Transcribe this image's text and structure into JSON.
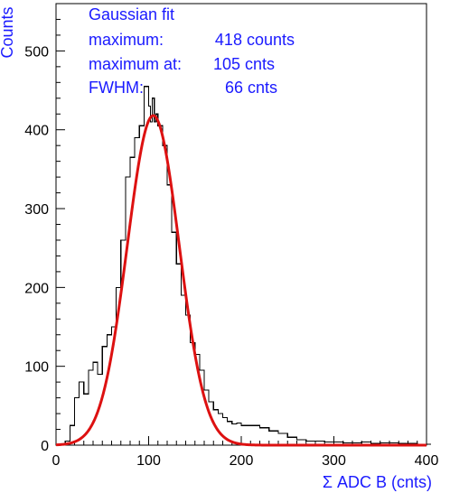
{
  "chart_data": {
    "type": "line",
    "title": "",
    "xlabel": "Σ ADC B  (cnts)",
    "ylabel": "Counts",
    "xlim": [
      0,
      400
    ],
    "ylim": [
      0,
      560
    ],
    "x_ticks": [
      0,
      100,
      200,
      300,
      400
    ],
    "y_ticks": [
      0,
      100,
      200,
      300,
      400,
      500
    ],
    "grid": false,
    "legend": "none",
    "annotations": [
      {
        "label": "Gaussian fit",
        "value": ""
      },
      {
        "label": "maximum:",
        "value": "418 counts"
      },
      {
        "label": "maximum at:",
        "value": "105 cnts"
      },
      {
        "label": "FWHM:",
        "value": "66 cnts"
      }
    ],
    "colors": {
      "histogram": "#000000",
      "fit": "#dd1111",
      "text": "#1a1aff"
    },
    "series": [
      {
        "kind": "histogram-step",
        "x": [
          10,
          15,
          20,
          25,
          30,
          35,
          40,
          45,
          50,
          55,
          60,
          65,
          70,
          75,
          80,
          85,
          90,
          95,
          100,
          102,
          104,
          106,
          108,
          110,
          115,
          120,
          125,
          130,
          135,
          140,
          145,
          150,
          155,
          160,
          165,
          170,
          175,
          180,
          185,
          190,
          195,
          200,
          210,
          220,
          230,
          240,
          250,
          260,
          270,
          280,
          290,
          300,
          310,
          320,
          330,
          340,
          350,
          360,
          370,
          380,
          390,
          400
        ],
        "values": [
          5,
          25,
          60,
          80,
          65,
          95,
          105,
          90,
          125,
          140,
          150,
          200,
          260,
          340,
          365,
          390,
          405,
          455,
          430,
          410,
          440,
          410,
          420,
          405,
          380,
          330,
          270,
          230,
          190,
          165,
          130,
          115,
          95,
          70,
          55,
          45,
          40,
          35,
          30,
          27,
          28,
          25,
          25,
          22,
          18,
          15,
          10,
          7,
          5,
          5,
          4,
          4,
          3,
          3,
          4,
          2,
          3,
          3,
          2,
          2,
          1,
          1
        ]
      },
      {
        "kind": "gaussian-fit",
        "amplitude": 418,
        "mean": 105,
        "fwhm": 66,
        "x_range": [
          0,
          400
        ]
      }
    ]
  }
}
